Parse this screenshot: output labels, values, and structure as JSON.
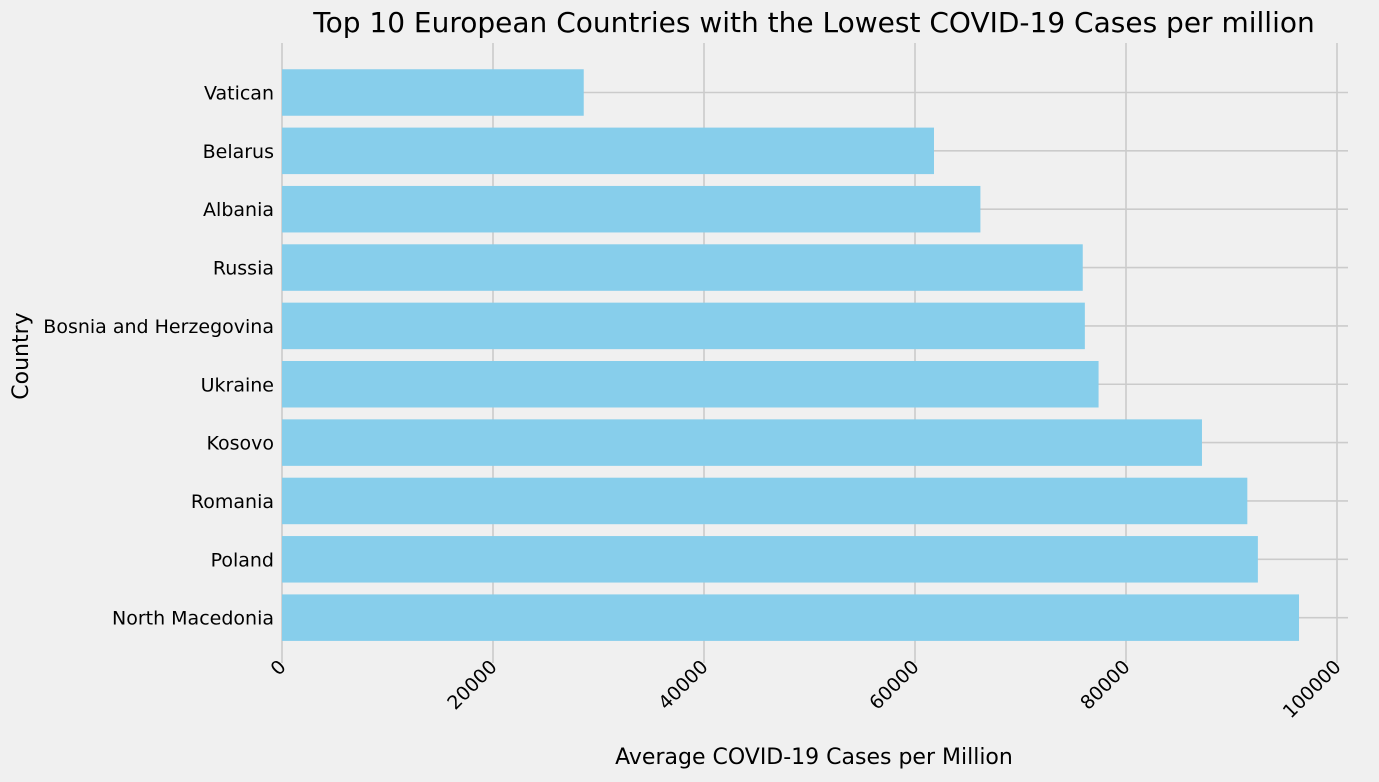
{
  "chart_data": {
    "type": "bar",
    "orientation": "horizontal",
    "title": "Top 10 European Countries with the Lowest COVID-19 Cases per million",
    "xlabel": "Average COVID-19 Cases per Million",
    "ylabel": "Country",
    "categories": [
      "Vatican",
      "Belarus",
      "Albania",
      "Russia",
      "Bosnia and Herzegovina",
      "Ukraine",
      "Kosovo",
      "Romania",
      "Poland",
      "North Macedonia"
    ],
    "values": [
      28600,
      61800,
      66200,
      75900,
      76100,
      77400,
      87200,
      91500,
      92500,
      96400
    ],
    "xlim": [
      0,
      100000
    ],
    "xticks": [
      "0",
      "20000",
      "40000",
      "60000",
      "80000",
      "100000"
    ],
    "xtick_rotation": 45,
    "grid": true,
    "bar_color": "#87ceeb",
    "grid_color": "#cbcbcb",
    "background_color": "#f0f0f0"
  }
}
